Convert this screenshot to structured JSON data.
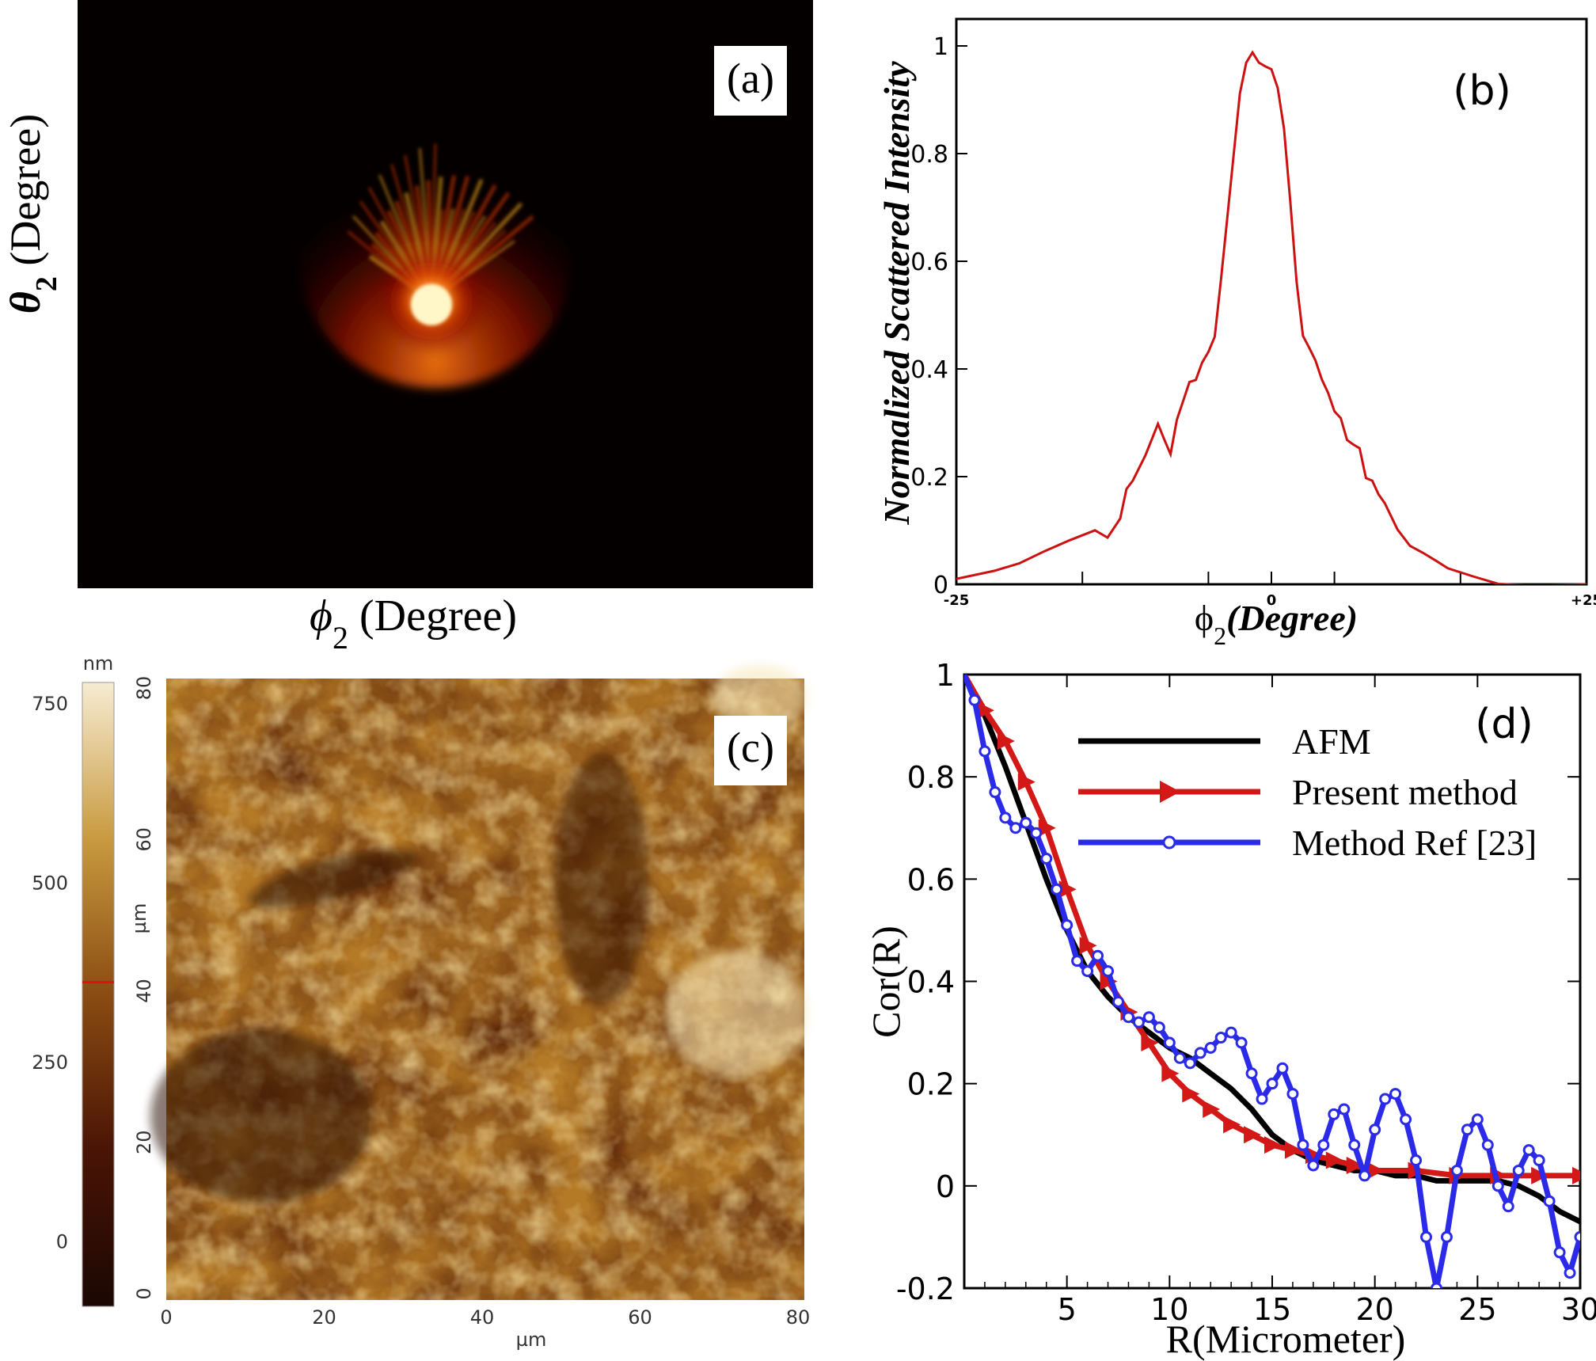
{
  "panel_a": {
    "label": "(a)",
    "ylabel": "θ",
    "ylabel_sub": "2",
    "ylabel_unit": " (Degree)",
    "xlabel": "ϕ",
    "xlabel_sub": "2",
    "xlabel_unit": " (Degree)",
    "colors": {
      "background": "#050000",
      "glow_core": "#fff6c8",
      "glow_mid": "#ff5a00",
      "glow_outer": "#a30c00"
    }
  },
  "panel_c": {
    "label": "(c)",
    "colorbar_unit": "nm",
    "colorbar_ticks": [
      "750",
      "500",
      "250",
      "0"
    ],
    "colorbar_marker": 362,
    "colorbar_range": [
      -90,
      780
    ],
    "axis_unit": "µm",
    "x_ticks": [
      "0",
      "20",
      "40",
      "60",
      "80"
    ],
    "y_ticks": [
      "80",
      "60",
      "40",
      "20",
      "0"
    ],
    "colors": {
      "dark": "#2a0d03",
      "mid": "#9a5c12",
      "light": "#f3dfa6",
      "marker": "#e01010"
    }
  },
  "chart_data": [
    {
      "id": "b",
      "type": "line",
      "label": "(b)",
      "xlabel_symbol": "ϕ",
      "xlabel_sub": "2",
      "xlabel_text": "(Degree)",
      "ylabel": "Normalized Scattered Intensity",
      "x_tick_labels": [
        "-25",
        "0",
        "+25"
      ],
      "y_tick_labels": [
        "0",
        "0.2",
        "0.4",
        "0.6",
        "0.8",
        "1"
      ],
      "xlim": [
        -25,
        25
      ],
      "ylim": [
        0,
        1.05
      ],
      "color": "#cc1111",
      "series": [
        {
          "x": [
            -25,
            -22,
            -20,
            -18,
            -16,
            -14,
            -13,
            -12,
            -11.5,
            -11,
            -10,
            -9,
            -8.5,
            -8,
            -7.5,
            -7,
            -6.5,
            -6,
            -5.5,
            -5,
            -4.5,
            -4,
            -3.5,
            -3,
            -2.5,
            -2,
            -1.5,
            -1,
            -0.5,
            0,
            0.5,
            1,
            1.5,
            2,
            2.5,
            3,
            3.5,
            4,
            4.5,
            5,
            5.5,
            6,
            6.5,
            7,
            7.5,
            8,
            8.5,
            9,
            10,
            11,
            12,
            13,
            14,
            16,
            18,
            20,
            22,
            25
          ],
          "y": [
            0.01,
            0.02,
            0.03,
            0.05,
            0.07,
            0.09,
            0.08,
            0.12,
            0.18,
            0.2,
            0.25,
            0.31,
            0.28,
            0.25,
            0.31,
            0.34,
            0.37,
            0.37,
            0.4,
            0.42,
            0.45,
            0.56,
            0.68,
            0.8,
            0.92,
            0.98,
            1.0,
            0.98,
            0.97,
            0.96,
            0.92,
            0.84,
            0.7,
            0.55,
            0.45,
            0.43,
            0.41,
            0.38,
            0.36,
            0.33,
            0.32,
            0.28,
            0.27,
            0.26,
            0.2,
            0.19,
            0.16,
            0.14,
            0.09,
            0.06,
            0.05,
            0.04,
            0.03,
            0.02,
            0.01,
            0.01,
            0.01,
            0.0
          ]
        }
      ]
    },
    {
      "id": "d",
      "type": "line",
      "label": "(d)",
      "xlabel": "R(Micrometer)",
      "ylabel": "Cor(R)",
      "x_tick_labels": [
        "5",
        "10",
        "15",
        "20",
        "25",
        "30"
      ],
      "y_tick_labels": [
        "-0.2",
        "0",
        "0.2",
        "0.4",
        "0.6",
        "0.8",
        "1"
      ],
      "xlim": [
        0,
        30
      ],
      "ylim": [
        -0.2,
        1.0
      ],
      "legend_position": "top-right",
      "series": [
        {
          "name": "AFM",
          "color": "#000000",
          "marker": "none",
          "x": [
            0,
            1,
            2,
            3,
            4,
            5,
            6,
            7,
            8,
            9,
            10,
            11,
            12,
            13,
            14,
            15,
            16,
            17,
            18,
            19,
            20,
            21,
            22,
            23,
            24,
            25,
            26,
            27,
            28,
            29,
            30
          ],
          "y": [
            1.0,
            0.92,
            0.82,
            0.71,
            0.6,
            0.5,
            0.42,
            0.37,
            0.33,
            0.3,
            0.27,
            0.25,
            0.22,
            0.19,
            0.15,
            0.1,
            0.07,
            0.05,
            0.04,
            0.03,
            0.03,
            0.02,
            0.02,
            0.01,
            0.01,
            0.01,
            0.01,
            0.0,
            -0.02,
            -0.05,
            -0.07
          ]
        },
        {
          "name": "Present method",
          "color": "#d31818",
          "marker": "triangle-right",
          "x": [
            0,
            1,
            2,
            3,
            4,
            5,
            6,
            7,
            8,
            9,
            10,
            11,
            12,
            13,
            14,
            15,
            16,
            17,
            18,
            19,
            20,
            22,
            24,
            26,
            28,
            30
          ],
          "y": [
            1.0,
            0.93,
            0.87,
            0.79,
            0.7,
            0.58,
            0.47,
            0.4,
            0.34,
            0.28,
            0.22,
            0.18,
            0.15,
            0.12,
            0.1,
            0.08,
            0.07,
            0.06,
            0.05,
            0.04,
            0.03,
            0.03,
            0.02,
            0.02,
            0.02,
            0.02
          ]
        },
        {
          "name": "Method Ref [23]",
          "color": "#2a2ae8",
          "marker": "circle",
          "x": [
            0,
            0.5,
            1,
            1.5,
            2,
            2.5,
            3,
            3.5,
            4,
            4.5,
            5,
            5.5,
            6,
            6.5,
            7,
            7.5,
            8,
            8.5,
            9,
            9.5,
            10,
            10.5,
            11,
            11.5,
            12,
            12.5,
            13,
            13.5,
            14,
            14.5,
            15,
            15.5,
            16,
            16.5,
            17,
            17.5,
            18,
            18.5,
            19,
            19.5,
            20,
            20.5,
            21,
            21.5,
            22,
            22.5,
            23,
            23.5,
            24,
            24.5,
            25,
            25.5,
            26,
            26.5,
            27,
            27.5,
            28,
            28.5,
            29,
            29.5,
            30
          ],
          "y": [
            1.0,
            0.95,
            0.85,
            0.77,
            0.72,
            0.7,
            0.71,
            0.69,
            0.64,
            0.58,
            0.51,
            0.44,
            0.42,
            0.45,
            0.42,
            0.36,
            0.33,
            0.32,
            0.33,
            0.31,
            0.28,
            0.25,
            0.24,
            0.26,
            0.27,
            0.29,
            0.3,
            0.28,
            0.22,
            0.17,
            0.2,
            0.23,
            0.18,
            0.08,
            0.04,
            0.08,
            0.14,
            0.15,
            0.08,
            0.02,
            0.11,
            0.17,
            0.18,
            0.13,
            0.05,
            -0.1,
            -0.2,
            -0.1,
            0.03,
            0.11,
            0.13,
            0.08,
            0.0,
            -0.04,
            0.03,
            0.07,
            0.05,
            -0.03,
            -0.13,
            -0.17,
            -0.1
          ]
        }
      ]
    }
  ]
}
